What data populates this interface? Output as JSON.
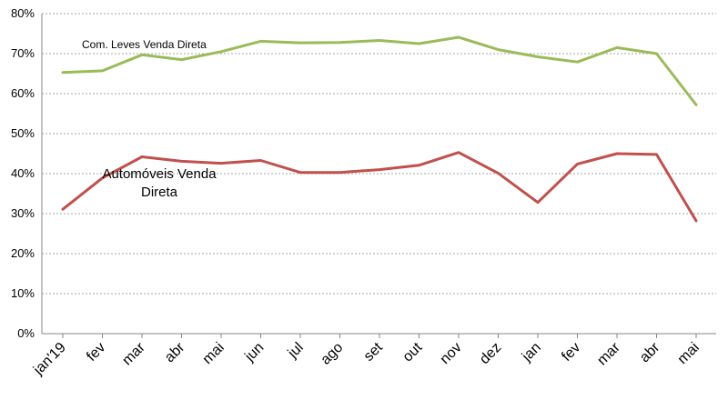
{
  "chart_data": {
    "type": "line",
    "categories": [
      "jan'19",
      "fev",
      "mar",
      "abr",
      "mai",
      "jun",
      "jul",
      "ago",
      "set",
      "out",
      "nov",
      "dez",
      "jan",
      "fev",
      "mar",
      "abr",
      "mai"
    ],
    "y_ticks": [
      "0%",
      "10%",
      "20%",
      "30%",
      "40%",
      "50%",
      "60%",
      "70%",
      "80%"
    ],
    "ylim": [
      0,
      80
    ],
    "y_unit": "%",
    "grid": "horizontal dashed",
    "series": [
      {
        "name": "Com. Leves Venda Direta",
        "color": "#9bbb59",
        "values": [
          65.3,
          65.7,
          69.7,
          68.5,
          70.5,
          73.1,
          72.7,
          72.8,
          73.3,
          72.5,
          74.1,
          71.0,
          69.2,
          67.9,
          71.5,
          70.0,
          57.2
        ]
      },
      {
        "name": "Automóveis Venda Direta",
        "name_lines": [
          "Automóveis Venda",
          "Direta"
        ],
        "color": "#c0504d",
        "values": [
          31.1,
          38.9,
          44.2,
          43.1,
          42.6,
          43.3,
          40.3,
          40.3,
          41.0,
          42.1,
          45.3,
          40.1,
          32.8,
          42.4,
          45.0,
          44.8,
          28.2
        ]
      }
    ],
    "title": "",
    "xlabel": "",
    "ylabel": ""
  }
}
